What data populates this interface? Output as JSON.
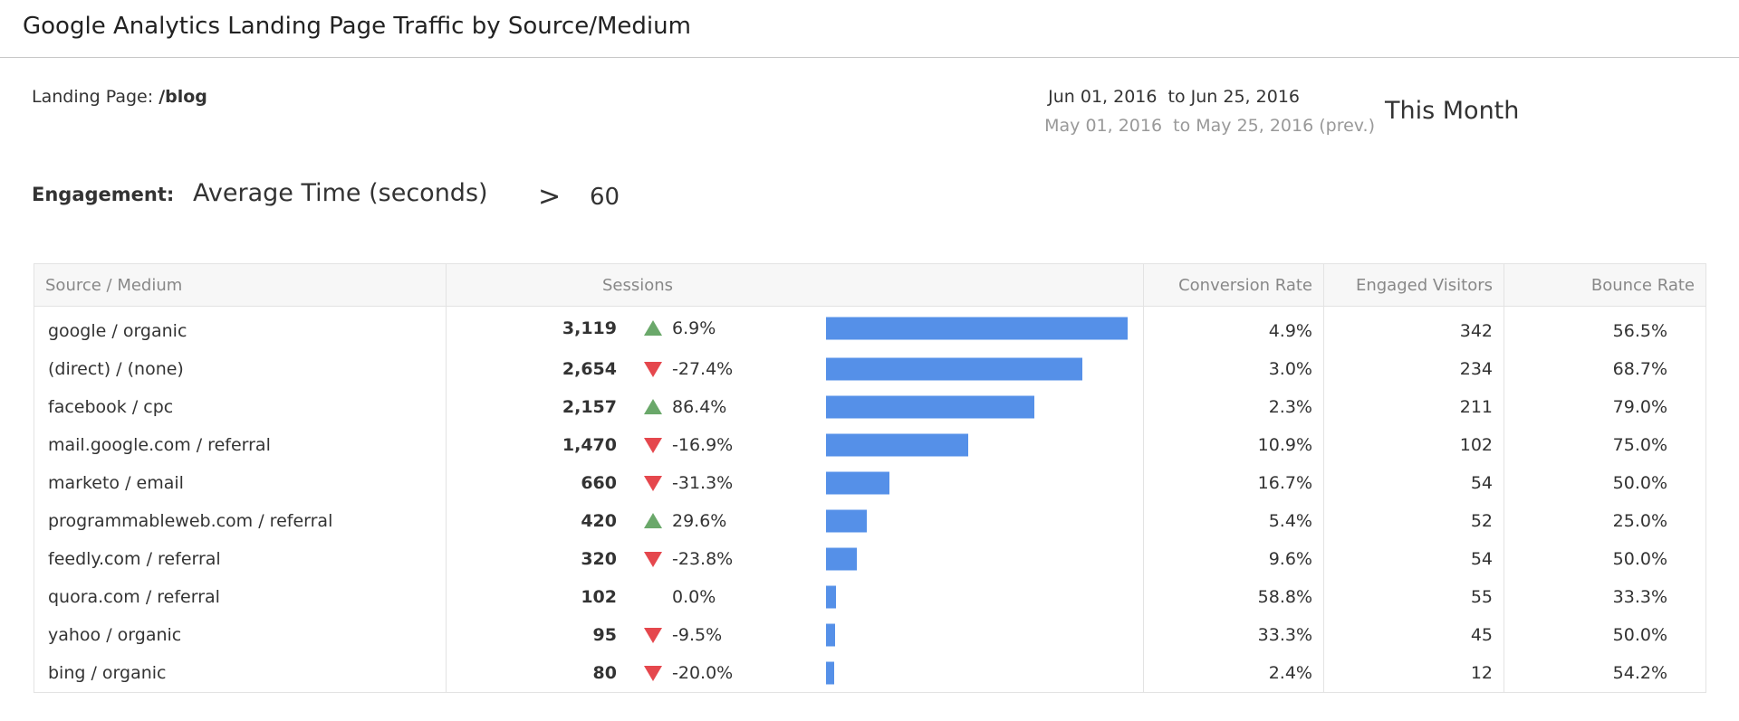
{
  "header": {
    "title": "Google Analytics Landing Page Traffic by Source/Medium"
  },
  "filter": {
    "landing_page_label": "Landing Page:",
    "landing_page_value": "/blog"
  },
  "date_range": {
    "current": "Jun 01, 2016  to Jun 25, 2016",
    "previous": "May 01, 2016  to May 25, 2016 (prev.)",
    "period": "This Month"
  },
  "engagement": {
    "label": "Engagement:",
    "metric": "Average Time (seconds)",
    "operator": ">",
    "threshold": 60
  },
  "table": {
    "columns": [
      "Source / Medium",
      "Sessions",
      "Conversion Rate",
      "Engaged Visitors",
      "Bounce Rate"
    ],
    "rows": [
      {
        "source": "google / organic",
        "sessions": {
          "value": 3119,
          "label": "3,119"
        },
        "change": {
          "value": 6.9,
          "label": "6.9%"
        },
        "conversion_rate": "4.9%",
        "engaged_visitors": 342,
        "bounce_rate": "56.5%"
      },
      {
        "source": "(direct) / (none)",
        "sessions": {
          "value": 2654,
          "label": "2,654"
        },
        "change": {
          "value": -27.4,
          "label": "-27.4%"
        },
        "conversion_rate": "3.0%",
        "engaged_visitors": 234,
        "bounce_rate": "68.7%"
      },
      {
        "source": "facebook / cpc",
        "sessions": {
          "value": 2157,
          "label": "2,157"
        },
        "change": {
          "value": 86.4,
          "label": "86.4%"
        },
        "conversion_rate": "2.3%",
        "engaged_visitors": 211,
        "bounce_rate": "79.0%"
      },
      {
        "source": "mail.google.com / referral",
        "sessions": {
          "value": 1470,
          "label": "1,470"
        },
        "change": {
          "value": -16.9,
          "label": "-16.9%"
        },
        "conversion_rate": "10.9%",
        "engaged_visitors": 102,
        "bounce_rate": "75.0%"
      },
      {
        "source": "marketo / email",
        "sessions": {
          "value": 660,
          "label": "660"
        },
        "change": {
          "value": -31.3,
          "label": "-31.3%"
        },
        "conversion_rate": "16.7%",
        "engaged_visitors": 54,
        "bounce_rate": "50.0%"
      },
      {
        "source": "programmableweb.com / referral",
        "sessions": {
          "value": 420,
          "label": "420"
        },
        "change": {
          "value": 29.6,
          "label": "29.6%"
        },
        "conversion_rate": "5.4%",
        "engaged_visitors": 52,
        "bounce_rate": "25.0%"
      },
      {
        "source": "feedly.com / referral",
        "sessions": {
          "value": 320,
          "label": "320"
        },
        "change": {
          "value": -23.8,
          "label": "-23.8%"
        },
        "conversion_rate": "9.6%",
        "engaged_visitors": 54,
        "bounce_rate": "50.0%"
      },
      {
        "source": "quora.com / referral",
        "sessions": {
          "value": 102,
          "label": "102"
        },
        "change": {
          "value": 0.0,
          "label": "0.0%"
        },
        "conversion_rate": "58.8%",
        "engaged_visitors": 55,
        "bounce_rate": "33.3%"
      },
      {
        "source": "yahoo / organic",
        "sessions": {
          "value": 95,
          "label": "95"
        },
        "change": {
          "value": -9.5,
          "label": "-9.5%"
        },
        "conversion_rate": "33.3%",
        "engaged_visitors": 45,
        "bounce_rate": "50.0%"
      },
      {
        "source": "bing / organic",
        "sessions": {
          "value": 80,
          "label": "80"
        },
        "change": {
          "value": -20.0,
          "label": "-20.0%"
        },
        "conversion_rate": "2.4%",
        "engaged_visitors": 12,
        "bounce_rate": "54.2%"
      }
    ]
  }
}
